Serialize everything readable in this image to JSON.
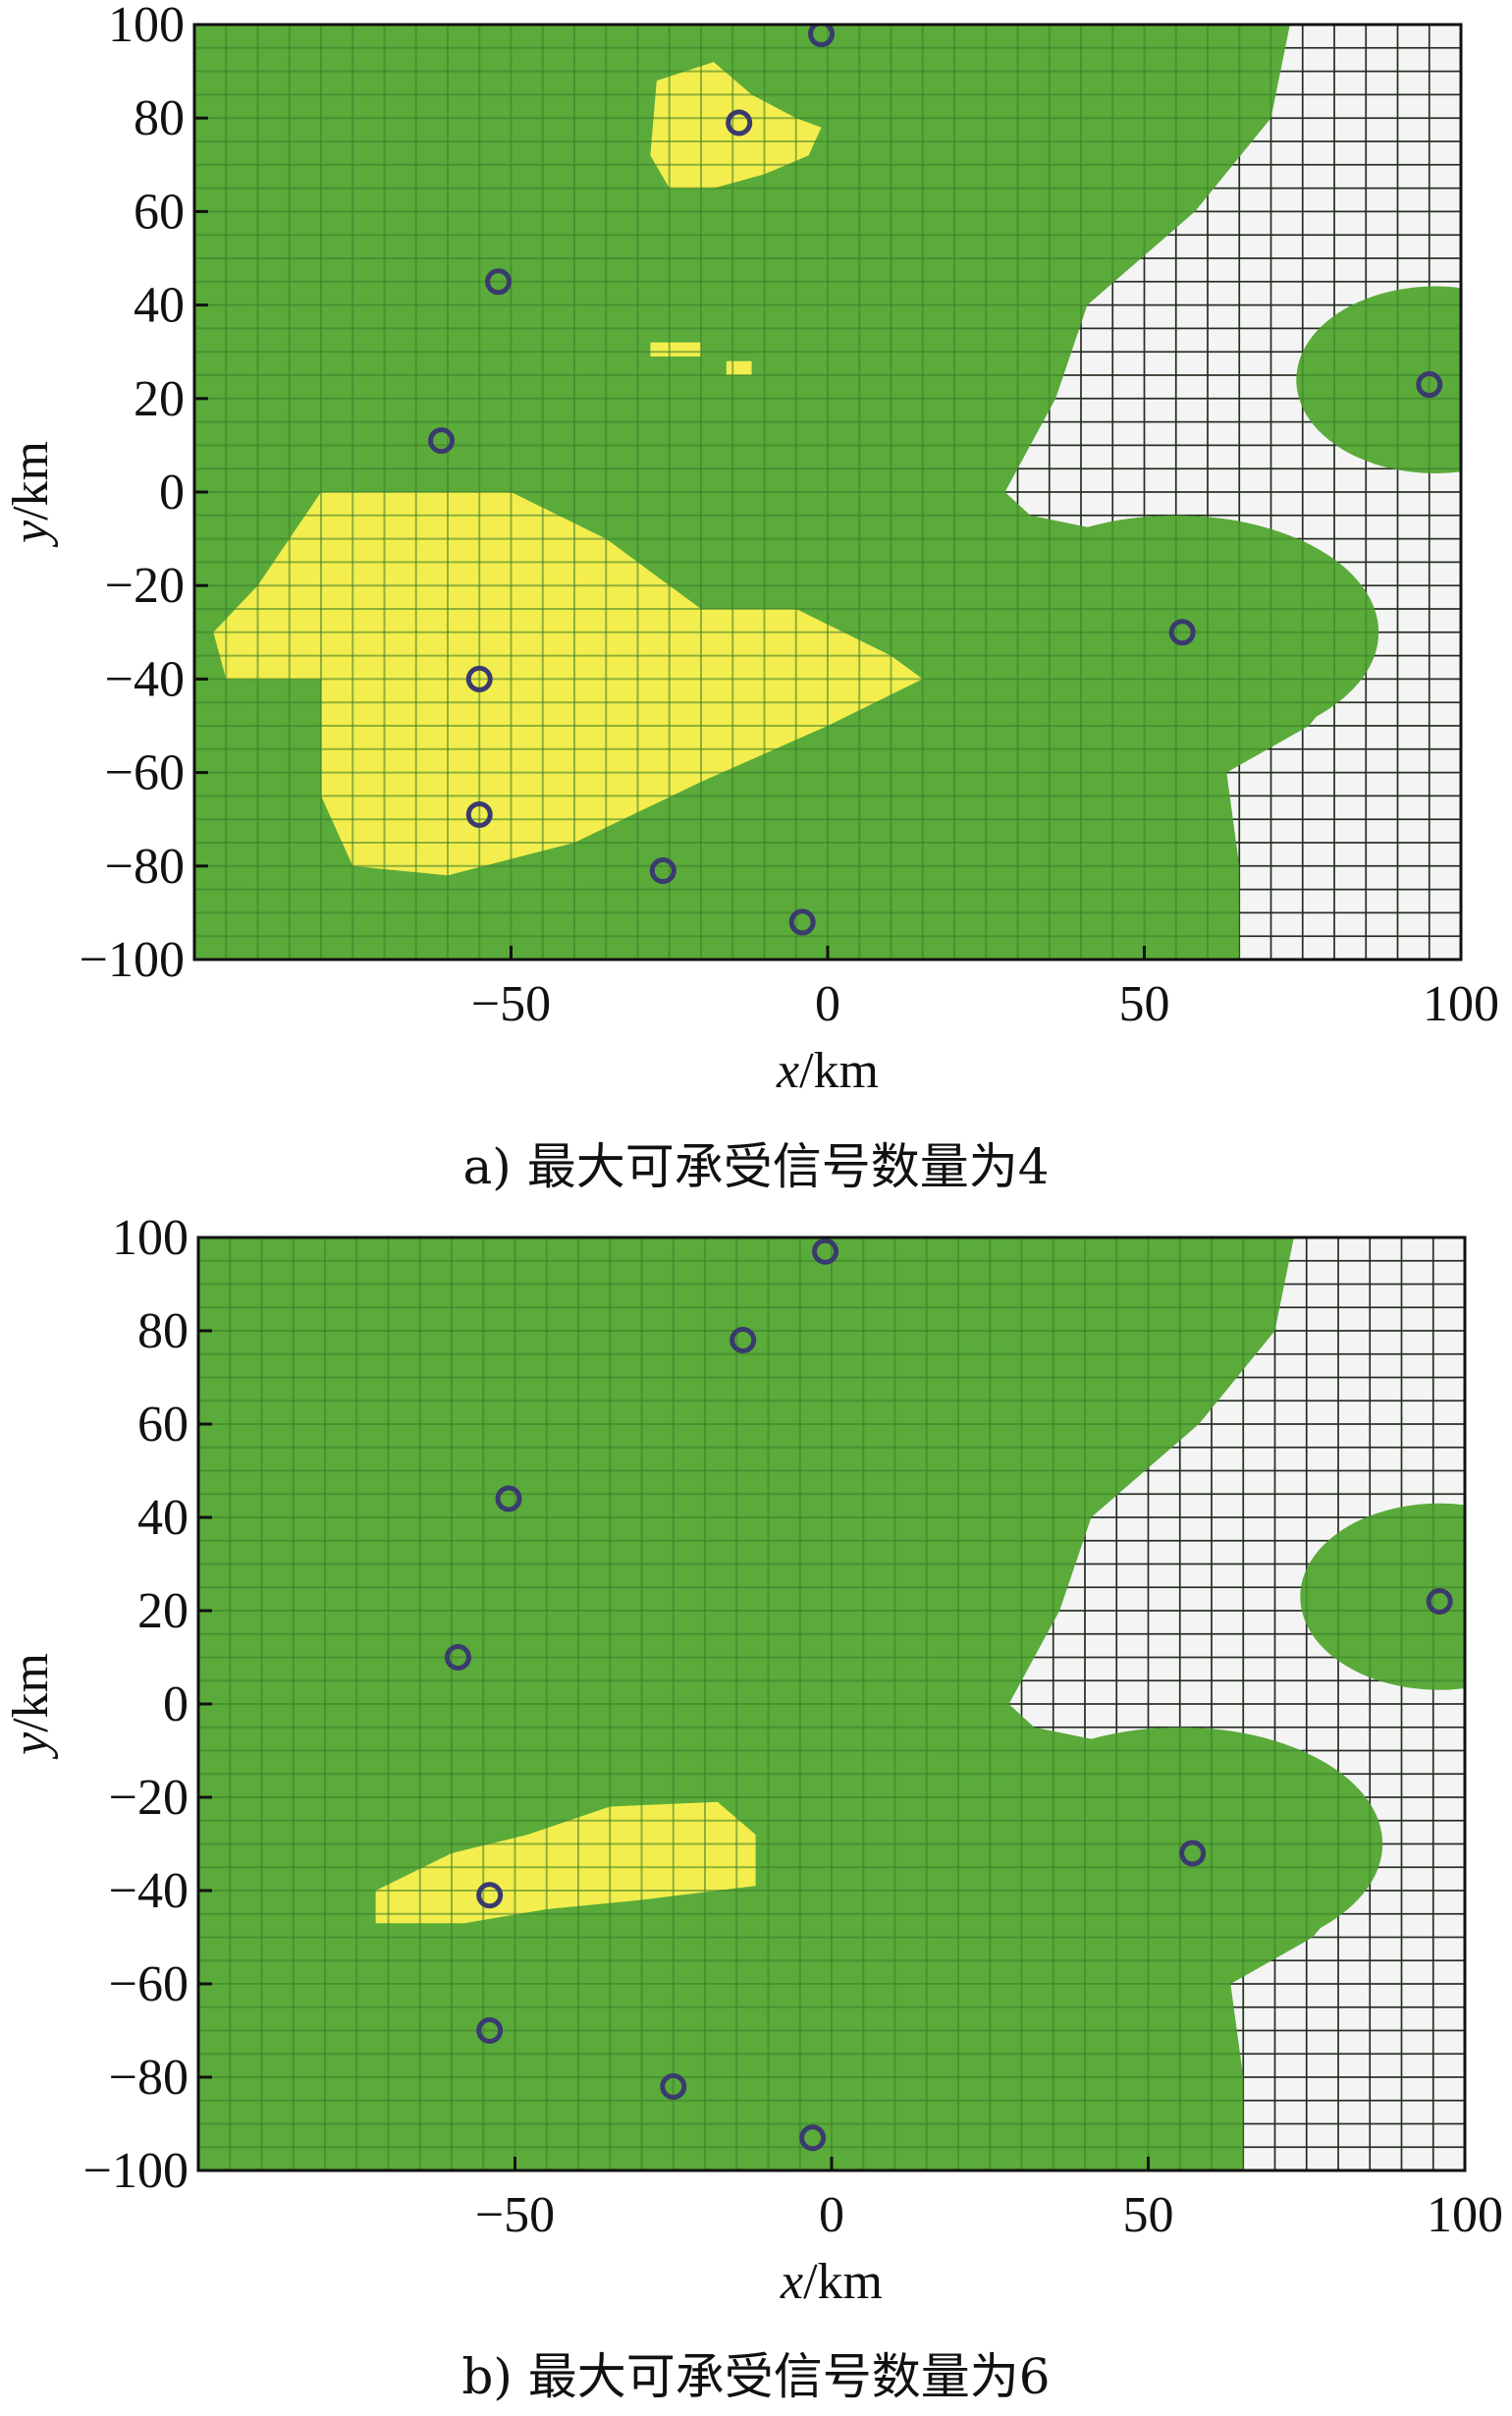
{
  "colors": {
    "green": "#5aab3a",
    "yellow": "#f3ee4e",
    "white": "#f4f4f4",
    "grid_on_green": "#3c7d2a",
    "grid_on_white": "#2a2a2a",
    "marker": "#3a3a6e"
  },
  "chart_data": [
    {
      "type": "heatmap",
      "caption": "a) 最大可承受信号数量为4",
      "xlabel_var": "x",
      "xlabel_unit": "/km",
      "ylabel_var": "y",
      "ylabel_unit": "/km",
      "xlim": [
        -100,
        100
      ],
      "ylim": [
        -100,
        100
      ],
      "xticks": [
        -50,
        0,
        50,
        100
      ],
      "xtick_labels": [
        "−50",
        "0",
        "50",
        "100"
      ],
      "yticks": [
        100,
        80,
        60,
        40,
        20,
        0,
        -20,
        -40,
        -60,
        -80,
        -100
      ],
      "ytick_labels": [
        "100",
        "80",
        "60",
        "40",
        "20",
        "0",
        "−20",
        "−40",
        "−60",
        "−80",
        "−100"
      ],
      "grid_step": 5,
      "white_boundary": [
        [
          100,
          73
        ],
        [
          80,
          70
        ],
        [
          60,
          58
        ],
        [
          40,
          41
        ],
        [
          20,
          36
        ],
        [
          10,
          32
        ],
        [
          0,
          28
        ],
        [
          -5,
          32
        ],
        [
          -10,
          50
        ],
        [
          -30,
          85
        ],
        [
          -40,
          82
        ],
        [
          -50,
          76
        ],
        [
          -60,
          63
        ],
        [
          -80,
          65
        ],
        [
          -100,
          65
        ]
      ],
      "green_islands": [
        {
          "cx": 96,
          "cy": 24,
          "rx": 22,
          "ry": 20
        },
        {
          "cx": 55,
          "cy": -30,
          "rx": 32,
          "ry": 25
        }
      ],
      "yellow_regions": [
        [
          [
            -80,
            0
          ],
          [
            -50,
            0
          ],
          [
            -35,
            -10
          ],
          [
            -20,
            -25
          ],
          [
            -5,
            -25
          ],
          [
            10,
            -35
          ],
          [
            15,
            -40
          ],
          [
            0,
            -50
          ],
          [
            -20,
            -62
          ],
          [
            -40,
            -75
          ],
          [
            -60,
            -82
          ],
          [
            -75,
            -80
          ],
          [
            -80,
            -65
          ],
          [
            -80,
            -40
          ],
          [
            -95,
            -40
          ],
          [
            -97,
            -30
          ],
          [
            -90,
            -20
          ]
        ],
        [
          [
            -27,
            88
          ],
          [
            -18,
            92
          ],
          [
            -12,
            85
          ],
          [
            -5,
            80
          ],
          [
            -1,
            78
          ],
          [
            -3,
            72
          ],
          [
            -10,
            68
          ],
          [
            -18,
            65
          ],
          [
            -25,
            65
          ],
          [
            -28,
            72
          ]
        ],
        [
          [
            -28,
            32
          ],
          [
            -20,
            32
          ],
          [
            -20,
            29
          ],
          [
            -28,
            29
          ]
        ],
        [
          [
            -16,
            28
          ],
          [
            -12,
            28
          ],
          [
            -12,
            25
          ],
          [
            -16,
            25
          ]
        ]
      ],
      "markers": [
        [
          -1,
          98
        ],
        [
          -14,
          79
        ],
        [
          -52,
          45
        ],
        [
          -61,
          11
        ],
        [
          -55,
          -40
        ],
        [
          -55,
          -69
        ],
        [
          -26,
          -81
        ],
        [
          -4,
          -92
        ],
        [
          56,
          -30
        ],
        [
          95,
          23
        ]
      ]
    },
    {
      "type": "heatmap",
      "caption": "b) 最大可承受信号数量为6",
      "xlabel_var": "x",
      "xlabel_unit": "/km",
      "ylabel_var": "y",
      "ylabel_unit": "/km",
      "xlim": [
        -100,
        100
      ],
      "ylim": [
        -100,
        100
      ],
      "xticks": [
        -50,
        0,
        50,
        100
      ],
      "xtick_labels": [
        "−50",
        "0",
        "50",
        "100"
      ],
      "yticks": [
        100,
        80,
        60,
        40,
        20,
        0,
        -20,
        -40,
        -60,
        -80,
        -100
      ],
      "ytick_labels": [
        "100",
        "80",
        "60",
        "40",
        "20",
        "0",
        "−20",
        "−40",
        "−60",
        "−80",
        "−100"
      ],
      "grid_step": 5,
      "white_boundary": [
        [
          100,
          73
        ],
        [
          80,
          70
        ],
        [
          60,
          58
        ],
        [
          40,
          41
        ],
        [
          20,
          36
        ],
        [
          10,
          32
        ],
        [
          0,
          28
        ],
        [
          -5,
          32
        ],
        [
          -10,
          50
        ],
        [
          -30,
          85
        ],
        [
          -40,
          82
        ],
        [
          -50,
          76
        ],
        [
          -60,
          63
        ],
        [
          -80,
          65
        ],
        [
          -100,
          65
        ]
      ],
      "green_islands": [
        {
          "cx": 96,
          "cy": 23,
          "rx": 22,
          "ry": 20
        },
        {
          "cx": 55,
          "cy": -30,
          "rx": 32,
          "ry": 25
        }
      ],
      "yellow_regions": [
        [
          [
            -72,
            -40
          ],
          [
            -60,
            -32
          ],
          [
            -48,
            -28
          ],
          [
            -35,
            -22
          ],
          [
            -18,
            -21
          ],
          [
            -12,
            -28
          ],
          [
            -12,
            -39
          ],
          [
            -30,
            -42
          ],
          [
            -45,
            -44
          ],
          [
            -58,
            -47
          ],
          [
            -72,
            -47
          ]
        ]
      ],
      "markers": [
        [
          -1,
          97
        ],
        [
          -14,
          78
        ],
        [
          -51,
          44
        ],
        [
          -59,
          10
        ],
        [
          -54,
          -41
        ],
        [
          -54,
          -70
        ],
        [
          -25,
          -82
        ],
        [
          -3,
          -93
        ],
        [
          57,
          -32
        ],
        [
          96,
          22
        ]
      ]
    }
  ]
}
